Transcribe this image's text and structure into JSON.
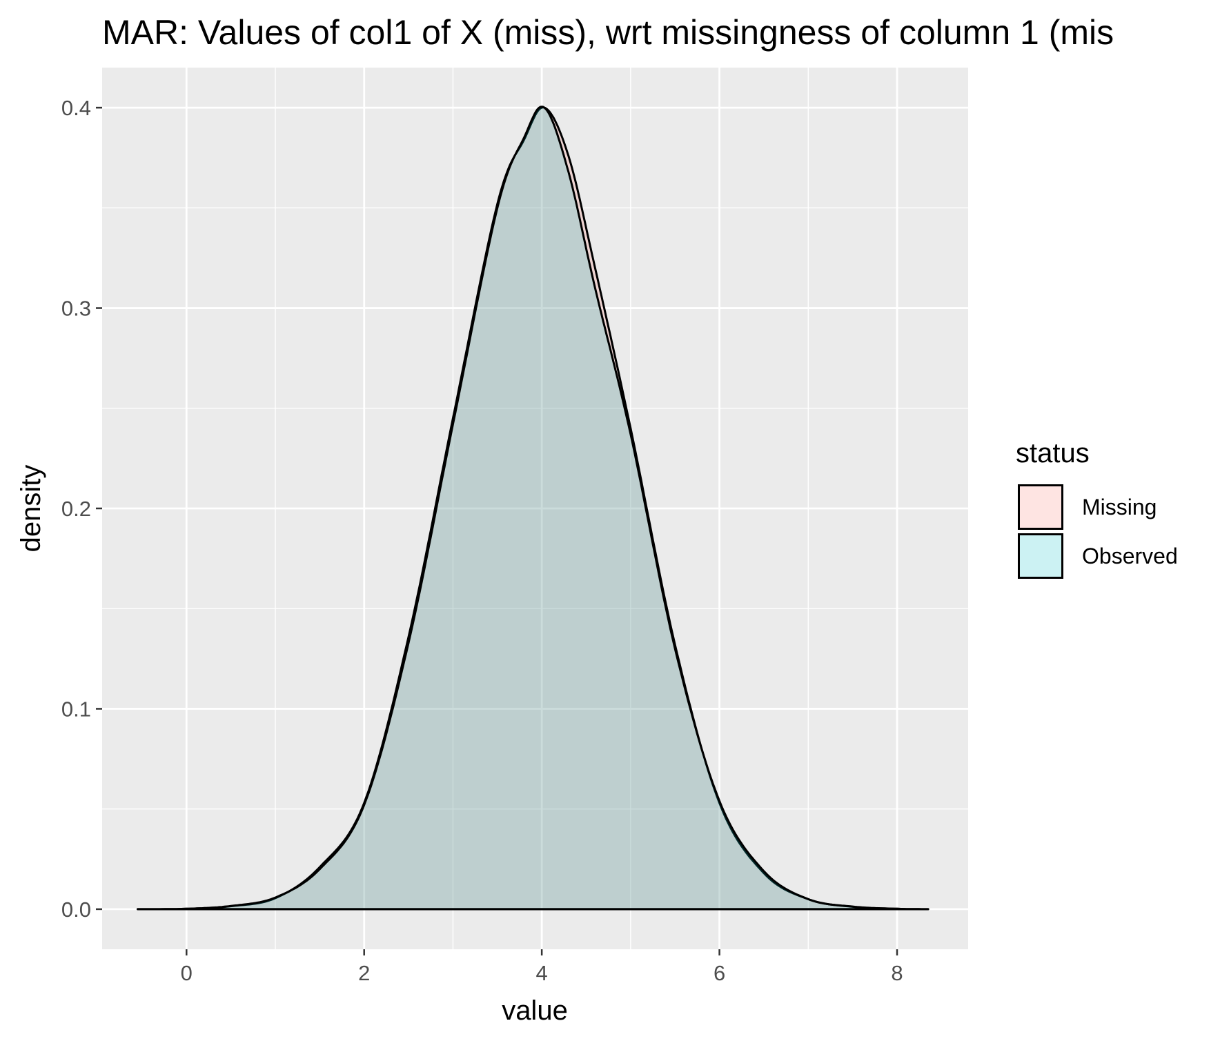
{
  "chart_data": {
    "type": "area",
    "title": "MAR: Values of col1 of X (miss), wrt missingness of column 1 (mis",
    "xlabel": "value",
    "ylabel": "density",
    "xlim": [
      -0.95,
      8.8
    ],
    "ylim": [
      -0.02,
      0.42
    ],
    "x_ticks": [
      0,
      2,
      4,
      6,
      8
    ],
    "x_tick_labels": [
      "0",
      "2",
      "4",
      "6",
      "8"
    ],
    "y_ticks": [
      0.0,
      0.1,
      0.2,
      0.3,
      0.4
    ],
    "y_tick_labels": [
      "0.0",
      "0.1",
      "0.2",
      "0.3",
      "0.4"
    ],
    "grid": true,
    "panel_background": "#ebebeb",
    "legend": {
      "title": "status",
      "position": "right"
    },
    "series": [
      {
        "name": "Missing",
        "fill": "#f8766d",
        "fill_alpha": 0.2,
        "x": [
          -0.55,
          0,
          0.5,
          1,
          1.5,
          2,
          2.5,
          3,
          3.5,
          3.8,
          4.03,
          4.3,
          4.6,
          5,
          5.5,
          6,
          6.5,
          7,
          7.5,
          8,
          8.35
        ],
        "y": [
          0.0,
          0.0002,
          0.0015,
          0.0055,
          0.021,
          0.053,
          0.136,
          0.245,
          0.352,
          0.384,
          0.4,
          0.376,
          0.32,
          0.24,
          0.132,
          0.053,
          0.018,
          0.005,
          0.0012,
          0.0002,
          0.0
        ]
      },
      {
        "name": "Observed",
        "fill": "#00bfc4",
        "fill_alpha": 0.2,
        "x": [
          -0.55,
          0,
          0.5,
          1,
          1.5,
          2,
          2.5,
          3,
          3.5,
          3.8,
          4.03,
          4.3,
          4.6,
          5,
          5.5,
          6,
          6.5,
          7,
          7.5,
          8,
          8.35
        ],
        "y": [
          0.0,
          0.0002,
          0.0016,
          0.0058,
          0.02,
          0.052,
          0.133,
          0.242,
          0.35,
          0.385,
          0.4,
          0.368,
          0.31,
          0.237,
          0.13,
          0.054,
          0.019,
          0.005,
          0.0013,
          0.0002,
          0.0
        ]
      }
    ]
  }
}
